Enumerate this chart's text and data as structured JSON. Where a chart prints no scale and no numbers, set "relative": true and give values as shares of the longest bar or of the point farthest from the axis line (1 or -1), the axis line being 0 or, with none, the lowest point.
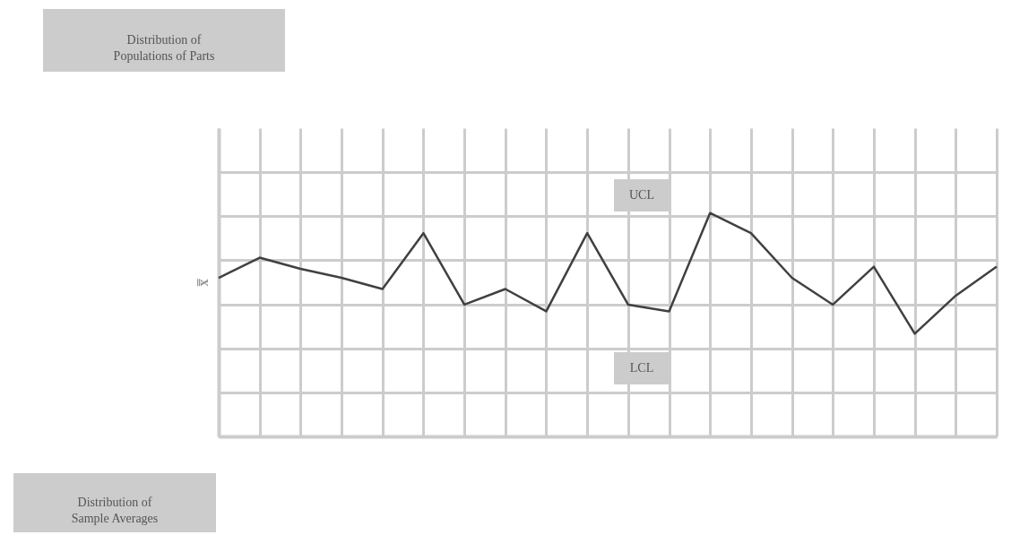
{
  "chart_data": {
    "type": "line",
    "relative": true,
    "ylabel": "x̿",
    "grid": true,
    "marker": "none",
    "line_style": "solid",
    "categories": [
      null,
      null,
      null,
      null,
      null,
      null,
      null,
      null,
      null,
      null,
      null,
      null,
      null,
      null,
      null,
      null,
      null,
      null,
      null,
      null
    ],
    "series": [
      {
        "color": "#404040",
        "values": [
          0.71,
          0.8,
          0.75,
          0.71,
          0.66,
          0.91,
          0.59,
          0.66,
          0.56,
          0.91,
          0.59,
          0.56,
          1,
          0.91,
          0.71,
          0.59,
          0.76,
          0.46,
          0.63,
          0.76
        ]
      }
    ],
    "annotations": [
      "Distribution of Populations of Parts",
      "Distribution of Sample Averages",
      "UCL",
      "LCL"
    ]
  }
}
